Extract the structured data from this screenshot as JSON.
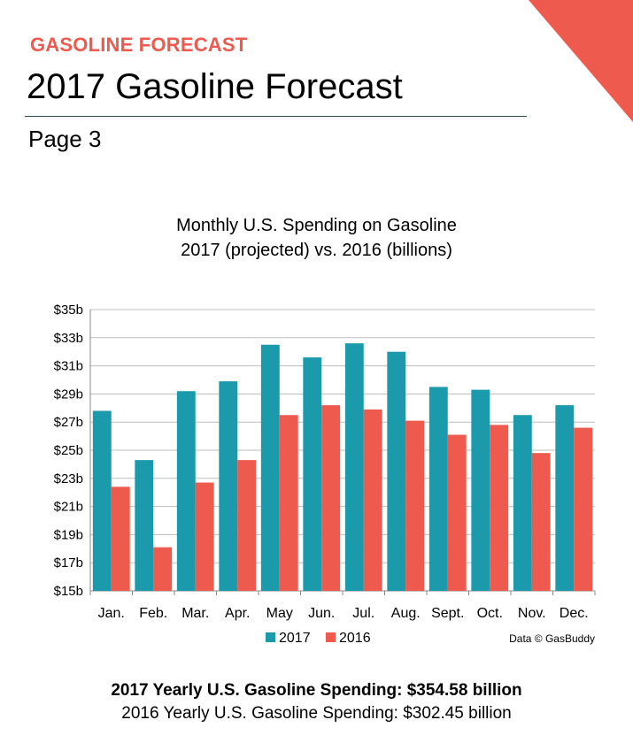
{
  "header": {
    "kicker": "GASOLINE FORECAST",
    "title": "2017 Gasoline Forecast",
    "page_label": "Page 3"
  },
  "colors": {
    "accent": "#ee5a4d",
    "series_2017": "#1a9aab",
    "series_2016": "#ee5a4d",
    "gridline": "#bdbdbd"
  },
  "chart_data": {
    "type": "bar",
    "title": "Monthly U.S. Spending on Gasoline",
    "subtitle": "2017 (projected) vs. 2016 (billions)",
    "categories": [
      "Jan.",
      "Feb.",
      "Mar.",
      "Apr.",
      "May",
      "Jun.",
      "Jul.",
      "Aug.",
      "Sept.",
      "Oct.",
      "Nov.",
      "Dec."
    ],
    "series": [
      {
        "name": "2017",
        "color": "#1a9aab",
        "values": [
          27.8,
          24.3,
          29.2,
          29.9,
          32.5,
          31.6,
          32.6,
          32.0,
          29.5,
          29.3,
          27.5,
          28.2
        ]
      },
      {
        "name": "2016",
        "color": "#ee5a4d",
        "values": [
          22.4,
          18.1,
          22.7,
          24.3,
          27.5,
          28.2,
          27.9,
          27.1,
          26.1,
          26.8,
          24.8,
          26.6
        ]
      }
    ],
    "y_ticks": [
      "$15b",
      "$17b",
      "$19b",
      "$21b",
      "$23b",
      "$25b",
      "$27b",
      "$29b",
      "$31b",
      "$33b",
      "$35b"
    ],
    "ylim": [
      15,
      35
    ],
    "ylabel": "",
    "xlabel": "",
    "grid": true,
    "legend": "bottom-left",
    "source_note": "Data © GasBuddy"
  },
  "totals": {
    "line_2017": "2017 Yearly U.S. Gasoline Spending: $354.58 billion",
    "line_2016": "2016 Yearly U.S. Gasoline Spending: $302.45 billion"
  }
}
